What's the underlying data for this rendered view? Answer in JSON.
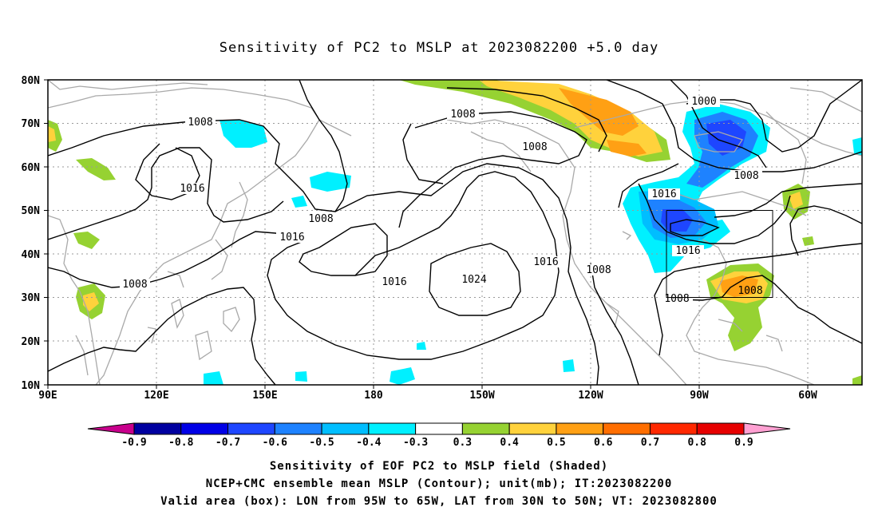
{
  "title": "Sensitivity of PC2 to MSLP at 2023082200 +5.0 day",
  "map": {
    "lon_labels": [
      "90E",
      "120E",
      "150E",
      "180",
      "150W",
      "120W",
      "90W",
      "60W"
    ],
    "lat_labels": [
      "80N",
      "70N",
      "60N",
      "50N",
      "40N",
      "30N",
      "20N",
      "10N"
    ],
    "contour_labels": [
      "1008",
      "1016",
      "1008",
      "1008",
      "1000",
      "1008",
      "1016",
      "1008",
      "1016",
      "1016",
      "1024",
      "1016",
      "1016",
      "1008",
      "1008",
      "1008"
    ],
    "valid_box": {
      "lon_from": "95W",
      "lon_to": "65W",
      "lat_from": "30N",
      "lat_to": "50N"
    }
  },
  "colorbar": {
    "labels": [
      "-0.9",
      "-0.8",
      "-0.7",
      "-0.6",
      "-0.5",
      "-0.4",
      "-0.3",
      "0.3",
      "0.4",
      "0.5",
      "0.6",
      "0.7",
      "0.8",
      "0.9"
    ],
    "colors": [
      "#c8008c",
      "#0000a0",
      "#0000e6",
      "#1e46ff",
      "#1e82ff",
      "#00beff",
      "#00f0ff",
      "#ffffff",
      "#96d232",
      "#ffd23c",
      "#ffa014",
      "#ff6e00",
      "#ff2800",
      "#e60000",
      "#ffa0d2"
    ]
  },
  "captions": {
    "line1": "Sensitivity of EOF PC2 to MSLP field (Shaded)",
    "line2": "NCEP+CMC ensemble mean MSLP (Contour); unit(mb); IT:2023082200",
    "line3": "Valid area (box): LON from 95W to 65W, LAT from 30N to 50N; VT: 2023082800"
  }
}
